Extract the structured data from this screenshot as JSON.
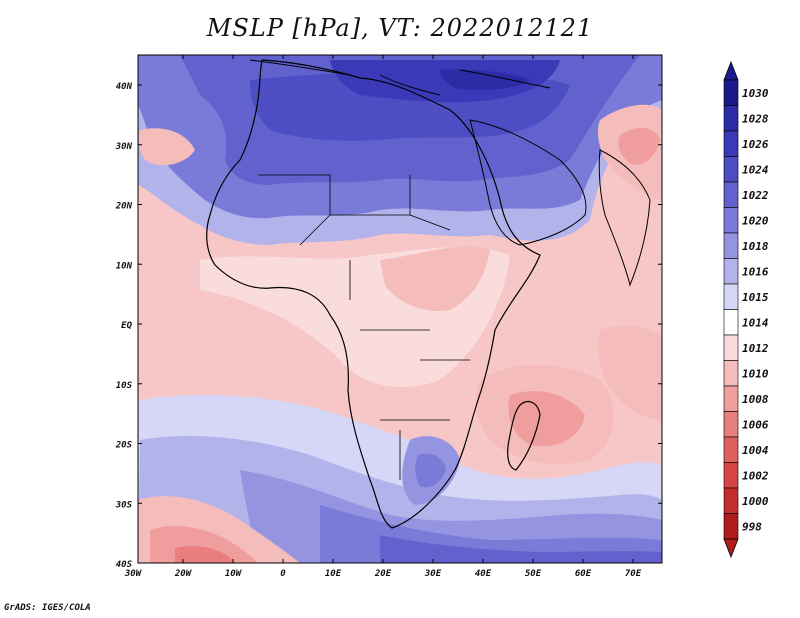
{
  "title": "MSLP [hPa], VT: 2022012121",
  "credit": "GrADS: IGES/COLA",
  "lat_ticks": [
    "40N",
    "30N",
    "20N",
    "10N",
    "EQ",
    "10S",
    "20S",
    "30S",
    "40S"
  ],
  "lon_ticks": [
    "30W",
    "20W",
    "10W",
    "0",
    "10E",
    "20E",
    "30E",
    "40E",
    "50E",
    "60E",
    "70E"
  ],
  "colorbar": {
    "levels": [
      "1030",
      "1028",
      "1026",
      "1024",
      "1022",
      "1020",
      "1018",
      "1016",
      "1015",
      "1014",
      "1012",
      "1010",
      "1008",
      "1006",
      "1004",
      "1002",
      "1000",
      "998"
    ],
    "colors": [
      "#1a1a8c",
      "#2b2ba6",
      "#3a3ab8",
      "#4d4dc4",
      "#6262cf",
      "#7a7ad8",
      "#9494e1",
      "#b3b3ec",
      "#d6d6f6",
      "#ffffff",
      "#fadcdc",
      "#f5bcbc",
      "#ef9d9d",
      "#e87e7e",
      "#e06060",
      "#d64444",
      "#c42d2d",
      "#b01c1c"
    ]
  }
}
